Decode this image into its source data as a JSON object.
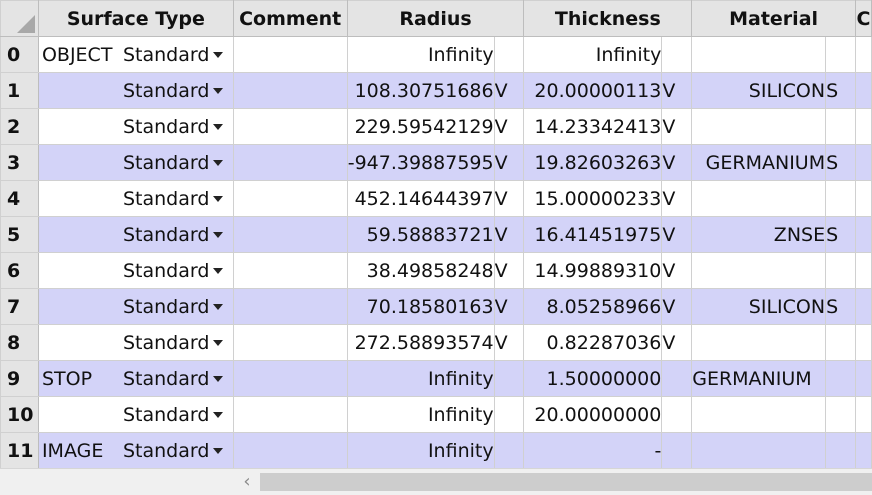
{
  "headers": {
    "surface_type": "Surface Type",
    "comment": "Comment",
    "radius": "Radius",
    "thickness": "Thickness",
    "material": "Material",
    "next_partial": "C"
  },
  "rows": [
    {
      "num": "0",
      "name": "OBJECT",
      "type": "Standard",
      "comment": "",
      "radius": "Infinity",
      "radius_flag": "",
      "thickness": "Infinity",
      "thickness_flag": "",
      "material": "",
      "material_flag": ""
    },
    {
      "num": "1",
      "name": "",
      "type": "Standard",
      "comment": "",
      "radius": "108.30751686",
      "radius_flag": "V",
      "thickness": "20.00000113",
      "thickness_flag": "V",
      "material": "SILICON",
      "material_flag": "S"
    },
    {
      "num": "2",
      "name": "",
      "type": "Standard",
      "comment": "",
      "radius": "229.59542129",
      "radius_flag": "V",
      "thickness": "14.23342413",
      "thickness_flag": "V",
      "material": "",
      "material_flag": ""
    },
    {
      "num": "3",
      "name": "",
      "type": "Standard",
      "comment": "",
      "radius": "-947.39887595",
      "radius_flag": "V",
      "thickness": "19.82603263",
      "thickness_flag": "V",
      "material": "GERMANIUM",
      "material_flag": "S"
    },
    {
      "num": "4",
      "name": "",
      "type": "Standard",
      "comment": "",
      "radius": "452.14644397",
      "radius_flag": "V",
      "thickness": "15.00000233",
      "thickness_flag": "V",
      "material": "",
      "material_flag": ""
    },
    {
      "num": "5",
      "name": "",
      "type": "Standard",
      "comment": "",
      "radius": "59.58883721",
      "radius_flag": "V",
      "thickness": "16.41451975",
      "thickness_flag": "V",
      "material": "ZNSE",
      "material_flag": "S"
    },
    {
      "num": "6",
      "name": "",
      "type": "Standard",
      "comment": "",
      "radius": "38.49858248",
      "radius_flag": "V",
      "thickness": "14.99889310",
      "thickness_flag": "V",
      "material": "",
      "material_flag": ""
    },
    {
      "num": "7",
      "name": "",
      "type": "Standard",
      "comment": "",
      "radius": "70.18580163",
      "radius_flag": "V",
      "thickness": "8.05258966",
      "thickness_flag": "V",
      "material": "SILICON",
      "material_flag": "S"
    },
    {
      "num": "8",
      "name": "",
      "type": "Standard",
      "comment": "",
      "radius": "272.58893574",
      "radius_flag": "V",
      "thickness": "0.82287036",
      "thickness_flag": "V",
      "material": "",
      "material_flag": ""
    },
    {
      "num": "9",
      "name": "STOP",
      "type": "Standard",
      "comment": "",
      "radius": "Infinity",
      "radius_flag": "",
      "thickness": "1.50000000",
      "thickness_flag": "",
      "material": "GERMANIUM",
      "material_flag": ""
    },
    {
      "num": "10",
      "name": "",
      "type": "Standard",
      "comment": "",
      "radius": "Infinity",
      "radius_flag": "",
      "thickness": "20.00000000",
      "thickness_flag": "",
      "material": "",
      "material_flag": ""
    },
    {
      "num": "11",
      "name": "IMAGE",
      "type": "Standard",
      "comment": "",
      "radius": "Infinity",
      "radius_flag": "",
      "thickness": "-",
      "thickness_flag": "",
      "material": "",
      "material_flag": ""
    }
  ],
  "icons": {
    "dropdown": "chevron-down-icon",
    "scroll_left": "arrow-left-icon",
    "corner": "select-all-icon"
  },
  "scroll_left_glyph": "‹",
  "colors": {
    "header_bg": "#e4e4e4",
    "alt_row_bg": "#d3d3f8",
    "grid_line": "#d0d0d0"
  }
}
